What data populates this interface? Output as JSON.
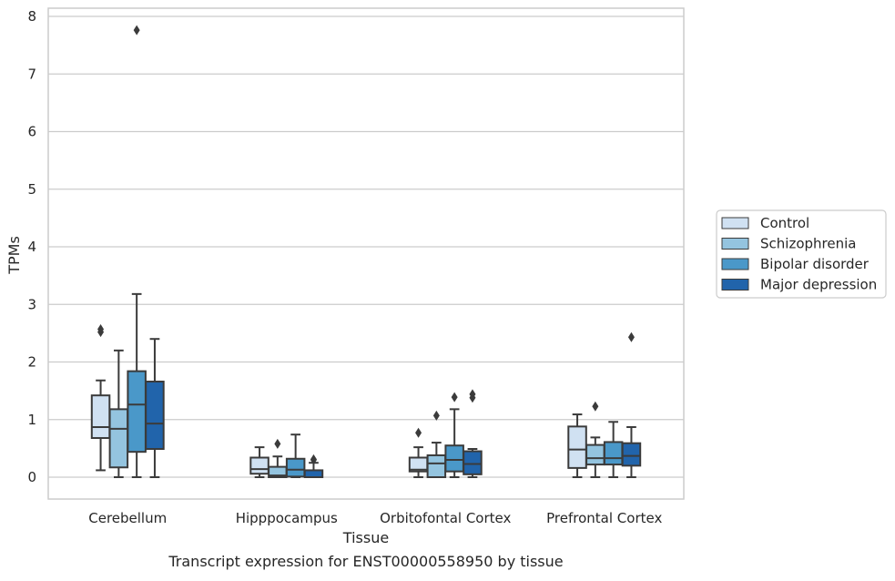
{
  "chart_data": {
    "type": "boxplot",
    "caption": "Transcript expression for ENST00000558950 by tissue",
    "xlabel": "Tissue",
    "ylabel": "TPMs",
    "ylim": [
      -0.38,
      8.15
    ],
    "yticks": [
      0,
      1,
      2,
      3,
      4,
      5,
      6,
      7,
      8
    ],
    "grid": "horizontal",
    "legend_position": "center-right, outside plot",
    "categories": [
      "Cerebellum",
      "Hipppocampus",
      "Orbitofontal Cortex",
      "Prefrontal Cortex"
    ],
    "series": [
      {
        "name": "Control",
        "color": "#d0e1f2",
        "boxes": [
          {
            "whislo": 0.12,
            "q1": 0.68,
            "med": 0.87,
            "q3": 1.42,
            "whishi": 1.68,
            "fliers": [
              2.52,
              2.57
            ]
          },
          {
            "whislo": 0.0,
            "q1": 0.06,
            "med": 0.14,
            "q3": 0.34,
            "whishi": 0.52,
            "fliers": []
          },
          {
            "whislo": 0.0,
            "q1": 0.1,
            "med": 0.13,
            "q3": 0.34,
            "whishi": 0.52,
            "fliers": [
              0.77
            ]
          },
          {
            "whislo": 0.0,
            "q1": 0.16,
            "med": 0.48,
            "q3": 0.88,
            "whishi": 1.09,
            "fliers": []
          }
        ]
      },
      {
        "name": "Schizophrenia",
        "color": "#94c4df",
        "boxes": [
          {
            "whislo": 0.0,
            "q1": 0.17,
            "med": 0.84,
            "q3": 1.18,
            "whishi": 2.2,
            "fliers": []
          },
          {
            "whislo": 0.0,
            "q1": 0.0,
            "med": 0.03,
            "q3": 0.18,
            "whishi": 0.36,
            "fliers": [
              0.58
            ]
          },
          {
            "whislo": 0.0,
            "q1": 0.0,
            "med": 0.24,
            "q3": 0.38,
            "whishi": 0.6,
            "fliers": [
              1.07
            ]
          },
          {
            "whislo": 0.0,
            "q1": 0.22,
            "med": 0.33,
            "q3": 0.56,
            "whishi": 0.69,
            "fliers": [
              1.23
            ]
          }
        ]
      },
      {
        "name": "Bipolar disorder",
        "color": "#4a98c9",
        "boxes": [
          {
            "whislo": 0.0,
            "q1": 0.44,
            "med": 1.26,
            "q3": 1.84,
            "whishi": 3.18,
            "fliers": [
              7.76
            ]
          },
          {
            "whislo": 0.0,
            "q1": 0.01,
            "med": 0.13,
            "q3": 0.32,
            "whishi": 0.74,
            "fliers": []
          },
          {
            "whislo": 0.0,
            "q1": 0.1,
            "med": 0.3,
            "q3": 0.55,
            "whishi": 1.18,
            "fliers": [
              1.39
            ]
          },
          {
            "whislo": 0.0,
            "q1": 0.22,
            "med": 0.33,
            "q3": 0.61,
            "whishi": 0.96,
            "fliers": []
          }
        ]
      },
      {
        "name": "Major depression",
        "color": "#2164ab",
        "boxes": [
          {
            "whislo": 0.0,
            "q1": 0.49,
            "med": 0.93,
            "q3": 1.66,
            "whishi": 2.4,
            "fliers": []
          },
          {
            "whislo": 0.0,
            "q1": 0.0,
            "med": 0.0,
            "q3": 0.12,
            "whishi": 0.25,
            "fliers": [
              0.3,
              0.31
            ]
          },
          {
            "whislo": 0.0,
            "q1": 0.05,
            "med": 0.23,
            "q3": 0.45,
            "whishi": 0.49,
            "fliers": [
              1.38,
              1.44
            ]
          },
          {
            "whislo": 0.0,
            "q1": 0.2,
            "med": 0.37,
            "q3": 0.59,
            "whishi": 0.87,
            "fliers": [
              2.43
            ]
          }
        ]
      }
    ]
  }
}
